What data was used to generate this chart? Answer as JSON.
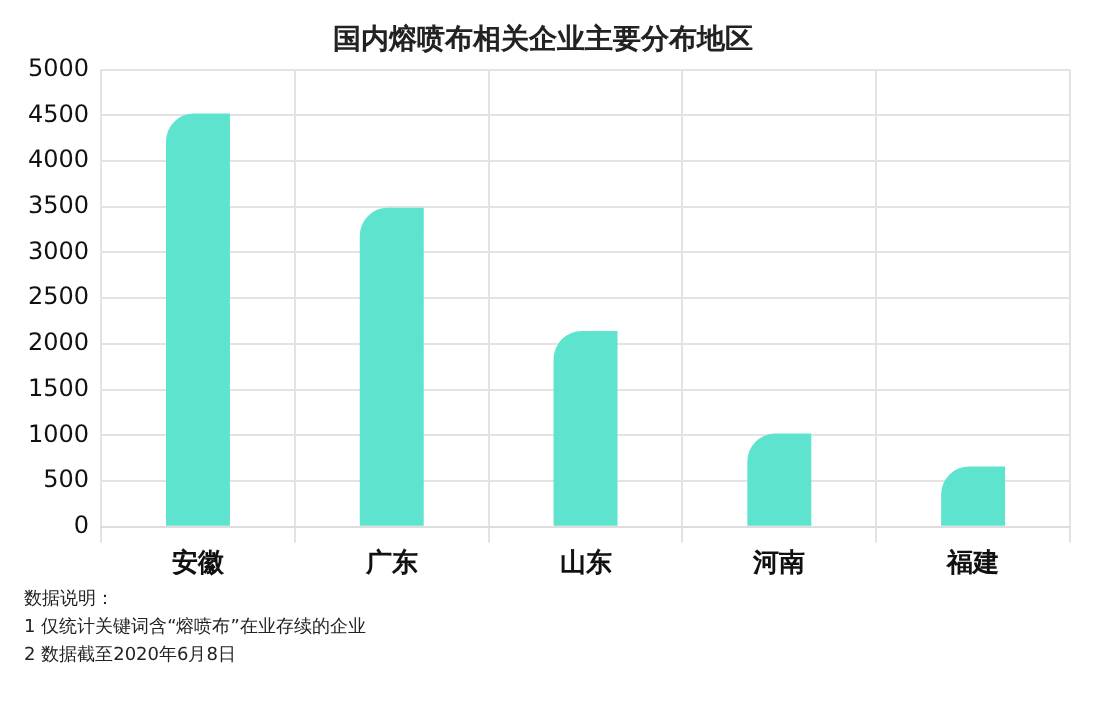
{
  "chart_data": {
    "type": "bar",
    "title": "国内熔喷布相关企业主要分布地区",
    "categories": [
      "安徽",
      "广东",
      "山东",
      "河南",
      "福建"
    ],
    "values": [
      4520,
      3490,
      2140,
      1020,
      660
    ],
    "color": "#5ee3cf",
    "ylim": [
      0,
      5000
    ],
    "yticks": [
      0,
      500,
      1000,
      1500,
      2000,
      2500,
      3000,
      3500,
      4000,
      4500,
      5000
    ],
    "grid": true,
    "annotations": [
      "数据说明：",
      "1 仅统计关键词含“熔喷布”在业存续的企业",
      "2 数据截至2020年6月8日"
    ]
  }
}
